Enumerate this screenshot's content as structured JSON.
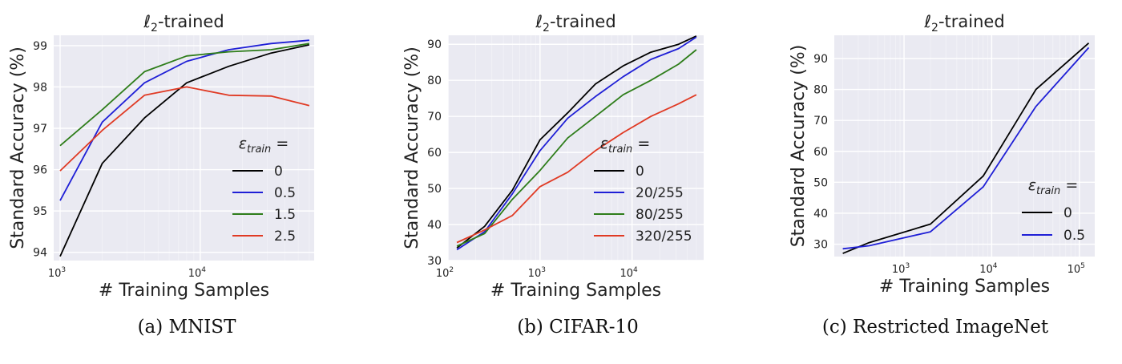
{
  "colors": {
    "panel_bg": "#eaeaf2",
    "grid": "#ffffff",
    "black": "#000000",
    "blue": "#1f1fd6",
    "green": "#2e7d1a",
    "red": "#e03a24"
  },
  "chart_data": [
    {
      "type": "line",
      "title": "ℓ2-trained",
      "xlabel": "# Training Samples",
      "ylabel": "Standard Accuracy (%)",
      "xscale": "log",
      "xlim": [
        900,
        65000
      ],
      "ylim": [
        93.8,
        99.25
      ],
      "xticks": [
        1000,
        10000
      ],
      "xtick_labels": [
        "10³",
        "10⁴"
      ],
      "yticks": [
        94,
        95,
        96,
        97,
        98,
        99
      ],
      "ytick_labels": [
        "94",
        "95",
        "96",
        "97",
        "98",
        "99"
      ],
      "grid": true,
      "legend_title": "εtrain =",
      "legend_position": "lower right",
      "caption": "(a) MNIST",
      "series": [
        {
          "name": "0",
          "color": "#000000",
          "x": [
            1000,
            2000,
            4000,
            8000,
            16000,
            32000,
            60000
          ],
          "y": [
            93.9,
            96.15,
            97.25,
            98.1,
            98.5,
            98.82,
            99.02
          ]
        },
        {
          "name": "0.5",
          "color": "#1f1fd6",
          "x": [
            1000,
            2000,
            4000,
            8000,
            16000,
            32000,
            60000
          ],
          "y": [
            95.25,
            97.15,
            98.1,
            98.62,
            98.9,
            99.05,
            99.13
          ]
        },
        {
          "name": "1.5",
          "color": "#2e7d1a",
          "x": [
            1000,
            2000,
            4000,
            8000,
            16000,
            32000,
            60000
          ],
          "y": [
            96.58,
            97.45,
            98.37,
            98.75,
            98.85,
            98.9,
            99.05
          ]
        },
        {
          "name": "2.5",
          "color": "#e03a24",
          "x": [
            1000,
            2000,
            4000,
            8000,
            16000,
            32000,
            60000
          ],
          "y": [
            95.97,
            96.95,
            97.8,
            98.0,
            97.8,
            97.78,
            97.55
          ]
        }
      ]
    },
    {
      "type": "line",
      "title": "ℓ2-trained",
      "xlabel": "# Training Samples",
      "ylabel": "Standard Accuracy (%)",
      "xscale": "log",
      "xlim": [
        100,
        60000
      ],
      "ylim": [
        30,
        92.5
      ],
      "xticks": [
        100,
        1000,
        10000
      ],
      "xtick_labels": [
        "10²",
        "10³",
        "10⁴"
      ],
      "yticks": [
        30,
        40,
        50,
        60,
        70,
        80,
        90
      ],
      "ytick_labels": [
        "30",
        "40",
        "50",
        "60",
        "70",
        "80",
        "90"
      ],
      "grid": true,
      "legend_title": "εtrain =",
      "legend_position": "lower right",
      "caption": "(b) CIFAR-10",
      "series": [
        {
          "name": "0",
          "color": "#000000",
          "x": [
            125,
            250,
            500,
            1000,
            2000,
            4000,
            8000,
            16000,
            32000,
            50000
          ],
          "y": [
            33.5,
            39.5,
            49.5,
            63.5,
            71.0,
            79.0,
            84.0,
            87.8,
            90.0,
            92.3
          ]
        },
        {
          "name": "20/255",
          "color": "#1f1fd6",
          "x": [
            125,
            250,
            500,
            1000,
            2000,
            4000,
            8000,
            16000,
            32000,
            50000
          ],
          "y": [
            33.0,
            38.0,
            48.5,
            60.5,
            69.5,
            75.5,
            81.0,
            85.8,
            88.8,
            92.0
          ]
        },
        {
          "name": "80/255",
          "color": "#2e7d1a",
          "x": [
            125,
            250,
            500,
            1000,
            2000,
            4000,
            8000,
            16000,
            32000,
            50000
          ],
          "y": [
            34.0,
            37.5,
            47.0,
            55.0,
            64.0,
            70.0,
            76.0,
            80.0,
            84.5,
            88.5
          ]
        },
        {
          "name": "320/255",
          "color": "#e03a24",
          "x": [
            125,
            250,
            500,
            1000,
            2000,
            4000,
            8000,
            16000,
            32000,
            50000
          ],
          "y": [
            35.0,
            38.5,
            42.5,
            50.5,
            54.5,
            60.5,
            65.5,
            70.0,
            73.5,
            76.0
          ]
        }
      ]
    },
    {
      "type": "line",
      "title": "ℓ2-trained",
      "xlabel": "# Training Samples",
      "ylabel": "Standard Accuracy (%)",
      "xscale": "log",
      "xlim": [
        160,
        150000
      ],
      "ylim": [
        26,
        97.5
      ],
      "xticks": [
        1000,
        10000,
        100000
      ],
      "xtick_labels": [
        "10³",
        "10⁴",
        "10⁵"
      ],
      "yticks": [
        30,
        40,
        50,
        60,
        70,
        80,
        90
      ],
      "ytick_labels": [
        "30",
        "40",
        "50",
        "60",
        "70",
        "80",
        "90"
      ],
      "grid": true,
      "legend_title": "εtrain =",
      "legend_position": "lower right",
      "caption": "(c) Restricted ImageNet",
      "series": [
        {
          "name": "0",
          "color": "#000000",
          "x": [
            200,
            400,
            2000,
            8000,
            32000,
            128000
          ],
          "y": [
            27.0,
            30.5,
            36.5,
            52.0,
            80.0,
            95.0
          ]
        },
        {
          "name": "0.5",
          "color": "#1f1fd6",
          "x": [
            200,
            400,
            2000,
            8000,
            32000,
            128000
          ],
          "y": [
            28.5,
            29.5,
            34.0,
            48.5,
            74.5,
            93.5
          ]
        }
      ]
    }
  ]
}
